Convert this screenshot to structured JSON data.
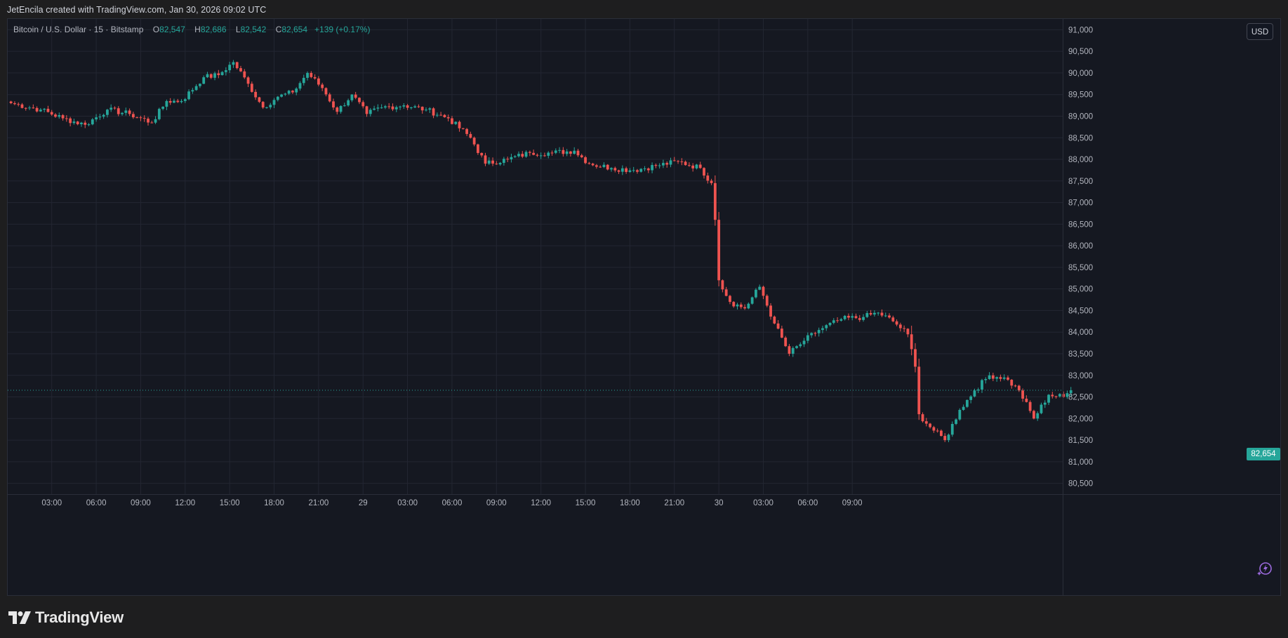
{
  "header": {
    "attribution": "JetEncila created with TradingView.com, Jan 30, 2026 09:02 UTC"
  },
  "legend": {
    "symbol": "Bitcoin / U.S. Dollar · 15 · Bitstamp",
    "open_label": "O",
    "open": "82,547",
    "high_label": "H",
    "high": "82,686",
    "low_label": "L",
    "low": "82,542",
    "close_label": "C",
    "close": "82,654",
    "change": "+139 (+0.17%)"
  },
  "price_scale": {
    "currency_button": "USD",
    "last_price_label": "82,654"
  },
  "footer": {
    "brand": "TradingView"
  },
  "colors": {
    "up": "#26a69a",
    "down": "#ef5350",
    "grid": "#232632",
    "background": "#151821",
    "text": "#b2b5be"
  },
  "chart_data": {
    "type": "candlestick",
    "title": "Bitcoin / U.S. Dollar · 15 · Bitstamp",
    "interval": "15",
    "exchange": "Bitstamp",
    "currency": "USD",
    "ylim": [
      80250,
      91250
    ],
    "y_ticks": [
      80500,
      81000,
      81500,
      82000,
      82500,
      83000,
      83500,
      84000,
      84500,
      85000,
      85500,
      86000,
      86500,
      87000,
      87500,
      88000,
      88500,
      89000,
      89500,
      90000,
      90500,
      91000
    ],
    "x_ticks": [
      "03:00",
      "06:00",
      "09:00",
      "12:00",
      "15:00",
      "18:00",
      "21:00",
      "29",
      "03:00",
      "06:00",
      "09:00",
      "12:00",
      "15:00",
      "18:00",
      "21:00",
      "30",
      "03:00",
      "06:00",
      "09:00"
    ],
    "grid": true,
    "last_price": 82654,
    "keyframes": [
      {
        "bar": 0,
        "price": 89300
      },
      {
        "bar": 8,
        "price": 89150
      },
      {
        "bar": 14,
        "price": 88950
      },
      {
        "bar": 20,
        "price": 88800
      },
      {
        "bar": 26,
        "price": 89150
      },
      {
        "bar": 32,
        "price": 89050
      },
      {
        "bar": 38,
        "price": 88850
      },
      {
        "bar": 42,
        "price": 89350
      },
      {
        "bar": 46,
        "price": 89350
      },
      {
        "bar": 52,
        "price": 89900
      },
      {
        "bar": 56,
        "price": 89950
      },
      {
        "bar": 60,
        "price": 90250
      },
      {
        "bar": 64,
        "price": 89750
      },
      {
        "bar": 68,
        "price": 89200
      },
      {
        "bar": 72,
        "price": 89450
      },
      {
        "bar": 76,
        "price": 89550
      },
      {
        "bar": 80,
        "price": 90000
      },
      {
        "bar": 84,
        "price": 89650
      },
      {
        "bar": 88,
        "price": 89100
      },
      {
        "bar": 92,
        "price": 89500
      },
      {
        "bar": 96,
        "price": 89050
      },
      {
        "bar": 100,
        "price": 89200
      },
      {
        "bar": 106,
        "price": 89250
      },
      {
        "bar": 112,
        "price": 89150
      },
      {
        "bar": 118,
        "price": 88950
      },
      {
        "bar": 124,
        "price": 88500
      },
      {
        "bar": 128,
        "price": 87900
      },
      {
        "bar": 134,
        "price": 88000
      },
      {
        "bar": 140,
        "price": 88150
      },
      {
        "bar": 146,
        "price": 88150
      },
      {
        "bar": 152,
        "price": 88200
      },
      {
        "bar": 156,
        "price": 87900
      },
      {
        "bar": 162,
        "price": 87800
      },
      {
        "bar": 168,
        "price": 87750
      },
      {
        "bar": 174,
        "price": 87850
      },
      {
        "bar": 180,
        "price": 87950
      },
      {
        "bar": 186,
        "price": 87800
      },
      {
        "bar": 189,
        "price": 87450
      },
      {
        "bar": 190,
        "price": 86600
      },
      {
        "bar": 191,
        "price": 85200
      },
      {
        "bar": 194,
        "price": 84700
      },
      {
        "bar": 198,
        "price": 84550
      },
      {
        "bar": 202,
        "price": 85050
      },
      {
        "bar": 206,
        "price": 84200
      },
      {
        "bar": 210,
        "price": 83500
      },
      {
        "bar": 214,
        "price": 83800
      },
      {
        "bar": 218,
        "price": 84050
      },
      {
        "bar": 224,
        "price": 84300
      },
      {
        "bar": 230,
        "price": 84350
      },
      {
        "bar": 234,
        "price": 84450
      },
      {
        "bar": 238,
        "price": 84250
      },
      {
        "bar": 242,
        "price": 83950
      },
      {
        "bar": 244,
        "price": 83200
      },
      {
        "bar": 245,
        "price": 82100
      },
      {
        "bar": 248,
        "price": 81800
      },
      {
        "bar": 252,
        "price": 81500
      },
      {
        "bar": 256,
        "price": 82200
      },
      {
        "bar": 260,
        "price": 82650
      },
      {
        "bar": 264,
        "price": 83000
      },
      {
        "bar": 268,
        "price": 82950
      },
      {
        "bar": 272,
        "price": 82650
      },
      {
        "bar": 276,
        "price": 82000
      },
      {
        "bar": 280,
        "price": 82550
      },
      {
        "bar": 284,
        "price": 82500
      },
      {
        "bar": 286,
        "price": 82654
      }
    ]
  }
}
